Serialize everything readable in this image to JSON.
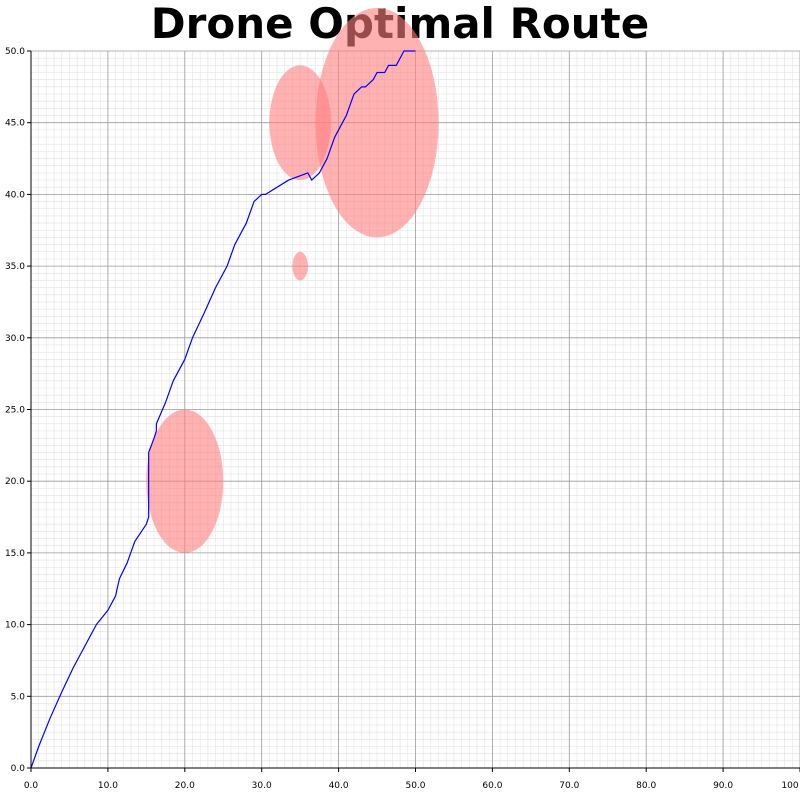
{
  "chart_data": {
    "type": "line",
    "title": "Drone Optimal Route",
    "xlabel": "",
    "ylabel": "",
    "xlim": [
      0,
      100
    ],
    "ylim": [
      0,
      50
    ],
    "grid": true,
    "x_ticks": [
      "0.0",
      "10.0",
      "20.0",
      "30.0",
      "40.0",
      "50.0",
      "60.0",
      "70.0",
      "80.0",
      "90.0",
      "100"
    ],
    "y_ticks": [
      "0.0",
      "5.0",
      "10.0",
      "15.0",
      "20.0",
      "25.0",
      "30.0",
      "35.0",
      "40.0",
      "45.0",
      "50.0"
    ],
    "series": [
      {
        "color": "#0000ff",
        "points": [
          [
            0.0,
            0.0
          ],
          [
            1.0,
            1.5
          ],
          [
            2.5,
            3.5
          ],
          [
            4.0,
            5.3
          ],
          [
            5.5,
            7.0
          ],
          [
            7.0,
            8.5
          ],
          [
            8.5,
            10.0
          ],
          [
            10.0,
            11.0
          ],
          [
            11.0,
            12.0
          ],
          [
            11.2,
            12.5
          ],
          [
            11.5,
            13.2
          ],
          [
            12.5,
            14.3
          ],
          [
            13.5,
            15.8
          ],
          [
            15.0,
            17.0
          ],
          [
            15.3,
            17.5
          ],
          [
            15.3,
            22.0
          ],
          [
            16.0,
            23.0
          ],
          [
            16.3,
            23.5
          ],
          [
            16.3,
            24.0
          ],
          [
            17.5,
            25.5
          ],
          [
            18.5,
            27.0
          ],
          [
            20.0,
            28.5
          ],
          [
            21.0,
            30.0
          ],
          [
            22.5,
            31.7
          ],
          [
            24.0,
            33.5
          ],
          [
            25.5,
            35.0
          ],
          [
            26.5,
            36.5
          ],
          [
            28.0,
            38.0
          ],
          [
            29.0,
            39.5
          ],
          [
            30.0,
            40.0
          ],
          [
            30.5,
            40.0
          ],
          [
            33.5,
            41.0
          ],
          [
            36.0,
            41.5
          ],
          [
            36.5,
            41.0
          ],
          [
            37.5,
            41.5
          ],
          [
            38.5,
            42.5
          ],
          [
            39.5,
            44.0
          ],
          [
            41.0,
            45.5
          ],
          [
            42.0,
            47.0
          ],
          [
            43.0,
            47.5
          ],
          [
            43.5,
            47.5
          ],
          [
            44.5,
            48.0
          ],
          [
            45.0,
            48.5
          ],
          [
            46.0,
            48.5
          ],
          [
            46.5,
            49.0
          ],
          [
            47.5,
            49.0
          ],
          [
            48.5,
            50.0
          ],
          [
            49.5,
            50.0
          ],
          [
            50.0,
            50.0
          ]
        ]
      }
    ],
    "obstacles": [
      {
        "cx": 20.0,
        "cy": 20.0,
        "rx": 5.0,
        "ry": 5.0,
        "color": "#ff7f7f"
      },
      {
        "cx": 35.0,
        "cy": 45.0,
        "rx": 4.0,
        "ry": 4.0,
        "color": "#ff7f7f"
      },
      {
        "cx": 35.0,
        "cy": 35.0,
        "rx": 1.0,
        "ry": 1.0,
        "color": "#ff7f7f"
      },
      {
        "cx": 45.0,
        "cy": 45.0,
        "rx": 8.0,
        "ry": 8.0,
        "color": "#ff7f7f"
      }
    ]
  }
}
